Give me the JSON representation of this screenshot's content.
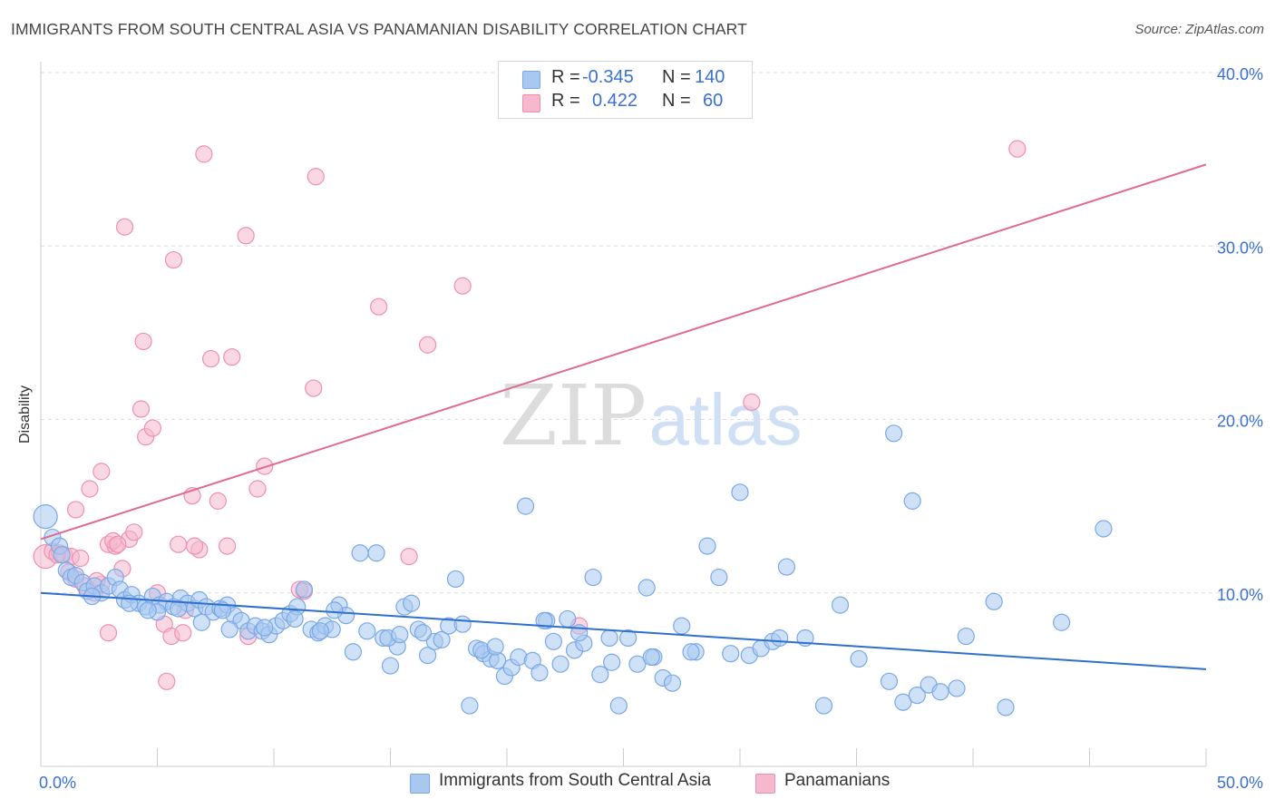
{
  "title": "IMMIGRANTS FROM SOUTH CENTRAL ASIA VS PANAMANIAN DISABILITY CORRELATION CHART",
  "source": "Source: ZipAtlas.com",
  "watermark": {
    "zip": "ZIP",
    "atlas": "atlas"
  },
  "legend": {
    "rows": [
      {
        "r_label": "R =",
        "r_value": "-0.345",
        "n_label": "N =",
        "n_value": "140",
        "color": "#a8c8f0"
      },
      {
        "r_label": "R =",
        "r_value": "0.422",
        "n_label": "N =",
        "n_value": "60",
        "color": "#f5b8cc"
      }
    ]
  },
  "bottom_legend": [
    {
      "label": "Immigrants from South Central Asia",
      "color": "#a8c8f0"
    },
    {
      "label": "Panamanians",
      "color": "#f5b8cc"
    }
  ],
  "colors": {
    "blue_fill": "#a8c8f0",
    "blue_stroke": "#7aa8e6",
    "blue_line": "#2f6fce",
    "pink_fill": "#f5b8cc",
    "pink_stroke": "#ee8fb0",
    "pink_line": "#e06a95",
    "axis_text": "#3a6fd4",
    "grid": "#dddddd"
  },
  "chart_data": {
    "type": "scatter",
    "title": "IMMIGRANTS FROM SOUTH CENTRAL ASIA VS PANAMANIAN DISABILITY CORRELATION CHART",
    "xlabel": "",
    "ylabel": "Disability",
    "xlim": [
      0,
      50
    ],
    "ylim": [
      0,
      40
    ],
    "x_tick_labels": [
      "0.0%",
      "50.0%"
    ],
    "y_ticks": [
      10,
      20,
      30,
      40
    ],
    "y_tick_labels": [
      "10.0%",
      "20.0%",
      "30.0%",
      "40.0%"
    ],
    "grid": true,
    "series": [
      {
        "name": "Immigrants from South Central Asia",
        "r": -0.345,
        "n": 140,
        "trend": {
          "x": [
            0,
            50
          ],
          "y": [
            10.0,
            5.6
          ]
        },
        "points": [
          [
            0.2,
            14.4
          ],
          [
            0.5,
            13.2
          ],
          [
            0.8,
            12.7
          ],
          [
            0.9,
            12.2
          ],
          [
            1.1,
            11.3
          ],
          [
            1.3,
            10.9
          ],
          [
            1.5,
            11.0
          ],
          [
            1.8,
            10.6
          ],
          [
            2.0,
            10.1
          ],
          [
            2.3,
            10.4
          ],
          [
            2.6,
            10.0
          ],
          [
            2.9,
            10.4
          ],
          [
            3.2,
            10.9
          ],
          [
            3.4,
            10.2
          ],
          [
            3.6,
            9.6
          ],
          [
            3.9,
            9.9
          ],
          [
            4.2,
            9.4
          ],
          [
            4.5,
            9.2
          ],
          [
            4.8,
            9.8
          ],
          [
            5.1,
            9.3
          ],
          [
            5.4,
            9.5
          ],
          [
            5.7,
            9.2
          ],
          [
            6.0,
            9.7
          ],
          [
            6.3,
            9.4
          ],
          [
            6.6,
            9.1
          ],
          [
            6.8,
            9.6
          ],
          [
            7.1,
            9.2
          ],
          [
            7.4,
            8.9
          ],
          [
            7.7,
            9.1
          ],
          [
            8.0,
            9.3
          ],
          [
            8.3,
            8.7
          ],
          [
            8.6,
            8.4
          ],
          [
            8.9,
            7.8
          ],
          [
            9.2,
            8.1
          ],
          [
            9.5,
            7.8
          ],
          [
            9.8,
            7.6
          ],
          [
            10.1,
            8.1
          ],
          [
            10.4,
            8.4
          ],
          [
            10.7,
            8.8
          ],
          [
            11.0,
            9.2
          ],
          [
            11.3,
            10.2
          ],
          [
            11.6,
            7.9
          ],
          [
            11.9,
            7.7
          ],
          [
            12.2,
            8.1
          ],
          [
            12.5,
            7.9
          ],
          [
            12.8,
            9.3
          ],
          [
            13.1,
            8.7
          ],
          [
            13.4,
            6.6
          ],
          [
            13.7,
            12.3
          ],
          [
            14.0,
            7.8
          ],
          [
            14.4,
            12.3
          ],
          [
            14.7,
            7.4
          ],
          [
            15.0,
            5.8
          ],
          [
            15.3,
            6.9
          ],
          [
            15.6,
            9.2
          ],
          [
            15.9,
            9.4
          ],
          [
            16.2,
            7.9
          ],
          [
            16.6,
            6.4
          ],
          [
            16.9,
            7.2
          ],
          [
            17.2,
            7.3
          ],
          [
            17.5,
            8.1
          ],
          [
            17.8,
            10.8
          ],
          [
            18.1,
            8.2
          ],
          [
            18.4,
            3.5
          ],
          [
            18.7,
            6.8
          ],
          [
            19.0,
            6.5
          ],
          [
            19.3,
            6.2
          ],
          [
            19.6,
            6.1
          ],
          [
            19.9,
            5.2
          ],
          [
            20.2,
            5.7
          ],
          [
            20.5,
            6.3
          ],
          [
            20.8,
            15.0
          ],
          [
            21.1,
            6.1
          ],
          [
            21.4,
            5.4
          ],
          [
            21.7,
            8.4
          ],
          [
            22.0,
            7.2
          ],
          [
            22.3,
            5.9
          ],
          [
            22.6,
            8.5
          ],
          [
            22.9,
            6.7
          ],
          [
            23.3,
            7.1
          ],
          [
            23.7,
            10.9
          ],
          [
            24.0,
            5.3
          ],
          [
            24.4,
            7.4
          ],
          [
            24.8,
            3.5
          ],
          [
            25.2,
            7.4
          ],
          [
            25.6,
            5.9
          ],
          [
            26.0,
            10.3
          ],
          [
            26.3,
            6.3
          ],
          [
            26.7,
            5.1
          ],
          [
            27.1,
            4.8
          ],
          [
            27.5,
            8.1
          ],
          [
            28.1,
            6.6
          ],
          [
            28.6,
            12.7
          ],
          [
            29.1,
            10.9
          ],
          [
            29.6,
            6.5
          ],
          [
            30.0,
            15.8
          ],
          [
            30.4,
            6.4
          ],
          [
            30.9,
            6.8
          ],
          [
            31.4,
            7.2
          ],
          [
            32.0,
            11.5
          ],
          [
            32.8,
            7.4
          ],
          [
            33.6,
            3.5
          ],
          [
            34.3,
            9.3
          ],
          [
            35.1,
            6.2
          ],
          [
            36.4,
            4.9
          ],
          [
            37.0,
            3.7
          ],
          [
            37.4,
            15.3
          ],
          [
            37.6,
            4.1
          ],
          [
            38.1,
            4.7
          ],
          [
            38.6,
            4.3
          ],
          [
            39.3,
            4.5
          ],
          [
            39.7,
            7.5
          ],
          [
            40.9,
            9.5
          ],
          [
            41.4,
            3.4
          ],
          [
            43.8,
            8.3
          ],
          [
            45.6,
            13.7
          ],
          [
            36.6,
            19.2
          ],
          [
            2.2,
            9.8
          ],
          [
            5.0,
            8.9
          ],
          [
            6.9,
            8.3
          ],
          [
            8.1,
            7.9
          ],
          [
            9.6,
            8.0
          ],
          [
            12.0,
            7.8
          ],
          [
            14.9,
            7.4
          ],
          [
            16.4,
            7.7
          ],
          [
            18.9,
            6.7
          ],
          [
            21.6,
            8.4
          ],
          [
            24.5,
            6.0
          ],
          [
            27.9,
            6.6
          ],
          [
            31.7,
            7.4
          ],
          [
            3.8,
            9.4
          ],
          [
            4.6,
            9.0
          ],
          [
            5.9,
            9.1
          ],
          [
            7.8,
            9.0
          ],
          [
            10.9,
            8.5
          ],
          [
            12.6,
            9.0
          ],
          [
            15.4,
            7.6
          ],
          [
            19.5,
            6.9
          ],
          [
            23.1,
            7.7
          ],
          [
            26.2,
            6.3
          ]
        ]
      },
      {
        "name": "Panamanians",
        "r": 0.422,
        "n": 60,
        "trend": {
          "x": [
            0,
            50
          ],
          "y": [
            13.1,
            34.7
          ]
        },
        "points": [
          [
            0.2,
            12.1
          ],
          [
            0.5,
            12.4
          ],
          [
            0.8,
            12.3
          ],
          [
            1.0,
            12.2
          ],
          [
            1.2,
            11.2
          ],
          [
            1.5,
            10.8
          ],
          [
            1.9,
            10.4
          ],
          [
            2.3,
            10.0
          ],
          [
            2.6,
            10.5
          ],
          [
            2.9,
            12.8
          ],
          [
            3.2,
            12.7
          ],
          [
            3.5,
            11.4
          ],
          [
            3.8,
            13.1
          ],
          [
            4.0,
            13.5
          ],
          [
            4.3,
            20.6
          ],
          [
            4.5,
            19.0
          ],
          [
            4.8,
            19.5
          ],
          [
            5.0,
            10.0
          ],
          [
            5.3,
            8.2
          ],
          [
            5.6,
            7.5
          ],
          [
            5.9,
            12.8
          ],
          [
            6.2,
            9.0
          ],
          [
            6.5,
            15.6
          ],
          [
            6.8,
            12.5
          ],
          [
            7.0,
            35.3
          ],
          [
            7.3,
            23.5
          ],
          [
            7.6,
            15.3
          ],
          [
            8.0,
            12.7
          ],
          [
            8.2,
            23.6
          ],
          [
            8.8,
            30.6
          ],
          [
            9.3,
            16.0
          ],
          [
            9.6,
            17.3
          ],
          [
            11.3,
            10.1
          ],
          [
            11.7,
            21.8
          ],
          [
            11.8,
            34.0
          ],
          [
            14.5,
            26.5
          ],
          [
            15.8,
            12.1
          ],
          [
            16.6,
            24.3
          ],
          [
            18.1,
            27.7
          ],
          [
            23.1,
            8.1
          ],
          [
            30.5,
            21.0
          ],
          [
            41.9,
            35.6
          ],
          [
            1.5,
            14.8
          ],
          [
            2.1,
            16.0
          ],
          [
            2.6,
            17.0
          ],
          [
            3.1,
            13.0
          ],
          [
            3.6,
            31.1
          ],
          [
            4.4,
            24.5
          ],
          [
            5.7,
            29.2
          ],
          [
            1.3,
            12.1
          ],
          [
            0.7,
            12.2
          ],
          [
            2.9,
            7.7
          ],
          [
            5.4,
            4.9
          ],
          [
            6.1,
            7.7
          ],
          [
            6.6,
            12.7
          ],
          [
            2.4,
            10.7
          ],
          [
            3.3,
            12.8
          ],
          [
            1.7,
            12.0
          ],
          [
            11.1,
            10.2
          ],
          [
            8.9,
            7.5
          ]
        ]
      }
    ]
  }
}
